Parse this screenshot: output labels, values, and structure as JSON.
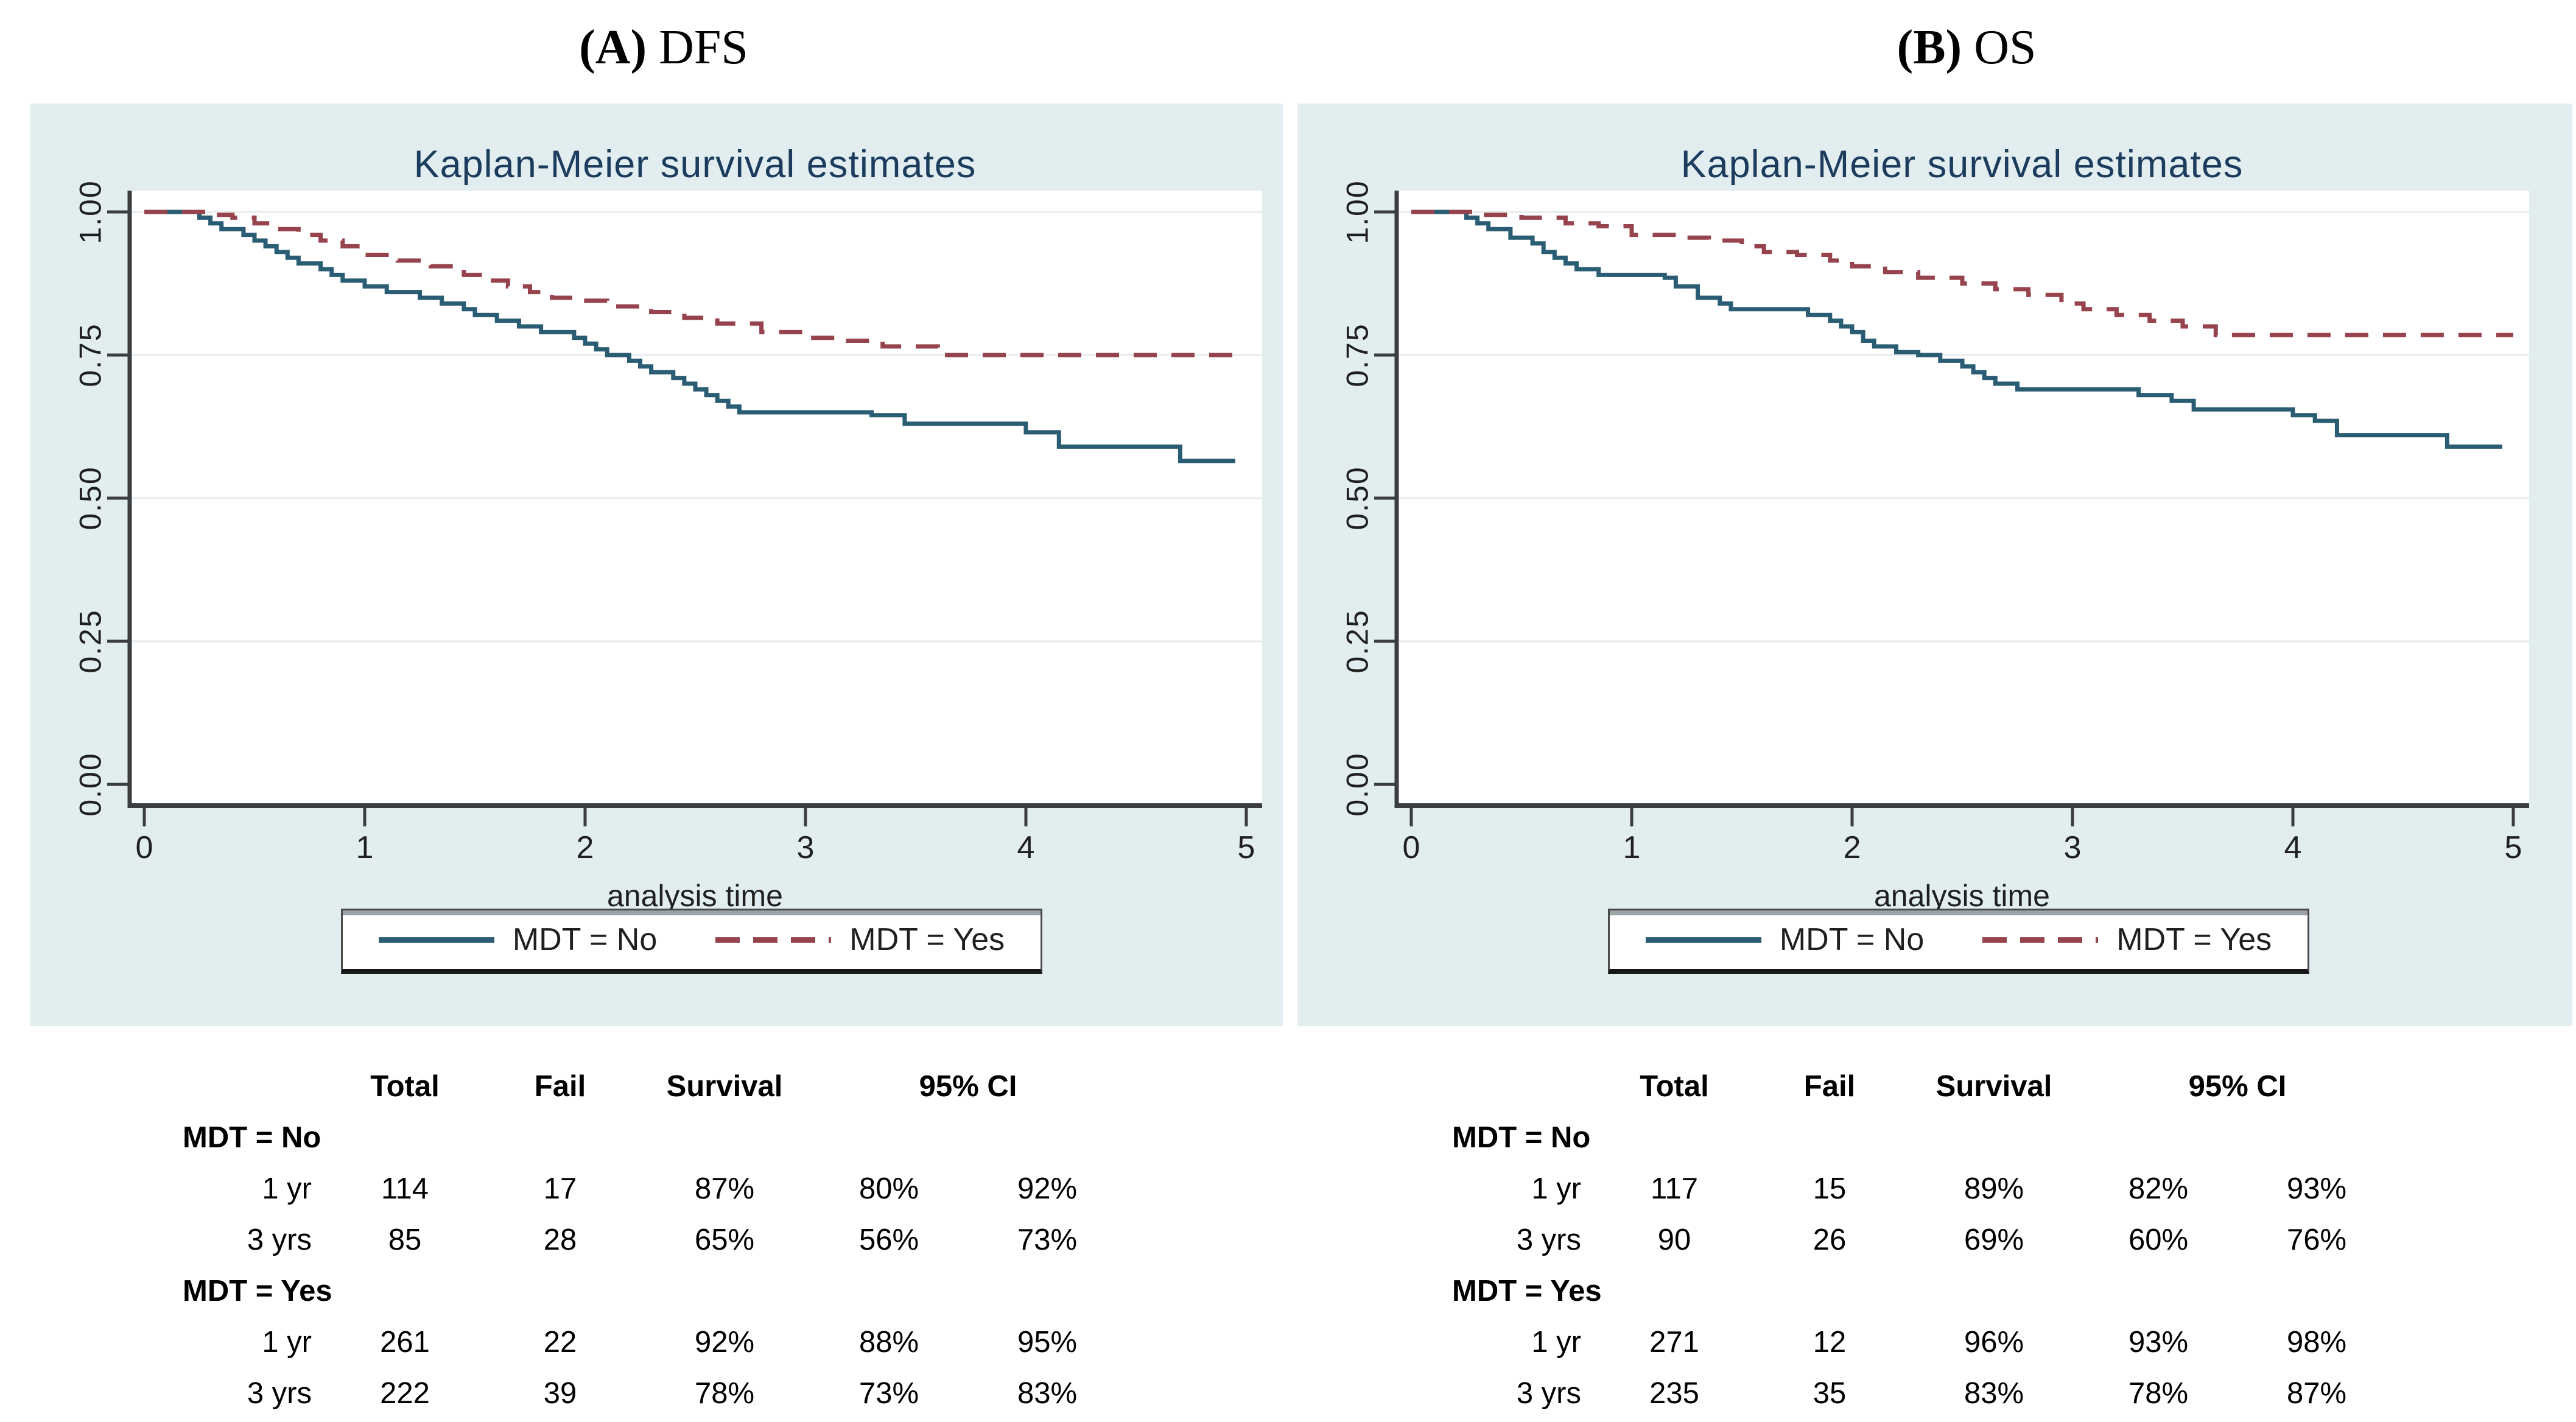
{
  "captions": [
    {
      "prefix": "(A)",
      "label": "DFS"
    },
    {
      "prefix": "(B)",
      "label": "OS"
    }
  ],
  "chart_data": [
    {
      "type": "line",
      "panel": "A",
      "title": "Kaplan-Meier survival estimates",
      "xlabel": "analysis time",
      "xticks": [
        "0",
        "1",
        "2",
        "3",
        "4",
        "5"
      ],
      "yticks": [
        "1.00",
        "0.75",
        "0.50",
        "0.25",
        "0.00"
      ],
      "xlim": [
        0,
        5.1
      ],
      "ylim": [
        0,
        1.04
      ],
      "grid": "horizontal",
      "legend_position": "below",
      "colors": {
        "plot_bg": "#ffffff",
        "panel_bg": "#e2edf0",
        "grid": "#e7ebec",
        "axis": "#3a3e41",
        "title": "#1c3c5e"
      },
      "series": [
        {
          "name": "MDT = No",
          "color": "#2a5d74",
          "dash": "solid",
          "points": [
            [
              0,
              1.0
            ],
            [
              0.25,
              0.99
            ],
            [
              0.3,
              0.98
            ],
            [
              0.35,
              0.97
            ],
            [
              0.45,
              0.96
            ],
            [
              0.5,
              0.95
            ],
            [
              0.55,
              0.94
            ],
            [
              0.6,
              0.93
            ],
            [
              0.65,
              0.92
            ],
            [
              0.7,
              0.91
            ],
            [
              0.8,
              0.9
            ],
            [
              0.85,
              0.89
            ],
            [
              0.9,
              0.88
            ],
            [
              1.0,
              0.87
            ],
            [
              1.1,
              0.86
            ],
            [
              1.25,
              0.85
            ],
            [
              1.35,
              0.84
            ],
            [
              1.45,
              0.83
            ],
            [
              1.5,
              0.82
            ],
            [
              1.6,
              0.81
            ],
            [
              1.7,
              0.8
            ],
            [
              1.8,
              0.79
            ],
            [
              1.95,
              0.78
            ],
            [
              2.0,
              0.77
            ],
            [
              2.05,
              0.76
            ],
            [
              2.1,
              0.75
            ],
            [
              2.2,
              0.74
            ],
            [
              2.25,
              0.73
            ],
            [
              2.3,
              0.72
            ],
            [
              2.4,
              0.71
            ],
            [
              2.45,
              0.7
            ],
            [
              2.5,
              0.69
            ],
            [
              2.55,
              0.68
            ],
            [
              2.6,
              0.67
            ],
            [
              2.65,
              0.66
            ],
            [
              2.7,
              0.65
            ],
            [
              3.3,
              0.645
            ],
            [
              3.45,
              0.63
            ],
            [
              4.0,
              0.615
            ],
            [
              4.15,
              0.59
            ],
            [
              4.7,
              0.565
            ],
            [
              4.95,
              0.565
            ]
          ]
        },
        {
          "name": "MDT = Yes",
          "color": "#96434d",
          "dash": "dashed",
          "points": [
            [
              0,
              1.0
            ],
            [
              0.3,
              0.995
            ],
            [
              0.4,
              0.99
            ],
            [
              0.5,
              0.98
            ],
            [
              0.6,
              0.97
            ],
            [
              0.7,
              0.96
            ],
            [
              0.8,
              0.95
            ],
            [
              0.9,
              0.94
            ],
            [
              1.0,
              0.925
            ],
            [
              1.15,
              0.915
            ],
            [
              1.3,
              0.905
            ],
            [
              1.45,
              0.89
            ],
            [
              1.55,
              0.88
            ],
            [
              1.65,
              0.87
            ],
            [
              1.75,
              0.86
            ],
            [
              1.85,
              0.85
            ],
            [
              1.95,
              0.845
            ],
            [
              2.1,
              0.835
            ],
            [
              2.3,
              0.825
            ],
            [
              2.45,
              0.815
            ],
            [
              2.6,
              0.805
            ],
            [
              2.8,
              0.79
            ],
            [
              3.0,
              0.78
            ],
            [
              3.15,
              0.775
            ],
            [
              3.35,
              0.765
            ],
            [
              3.6,
              0.75
            ],
            [
              5.0,
              0.75
            ]
          ]
        }
      ]
    },
    {
      "type": "line",
      "panel": "B",
      "title": "Kaplan-Meier survival estimates",
      "xlabel": "analysis time",
      "xticks": [
        "0",
        "1",
        "2",
        "3",
        "4",
        "5"
      ],
      "yticks": [
        "1.00",
        "0.75",
        "0.50",
        "0.25",
        "0.00"
      ],
      "xlim": [
        0,
        5.1
      ],
      "ylim": [
        0,
        1.04
      ],
      "grid": "horizontal",
      "legend_position": "below",
      "colors": {
        "plot_bg": "#ffffff",
        "panel_bg": "#e2edf0",
        "grid": "#e7ebec",
        "axis": "#3a3e41",
        "title": "#1c3c5e"
      },
      "series": [
        {
          "name": "MDT = No",
          "color": "#2a5d74",
          "dash": "solid",
          "points": [
            [
              0,
              1.0
            ],
            [
              0.25,
              0.99
            ],
            [
              0.3,
              0.98
            ],
            [
              0.35,
              0.97
            ],
            [
              0.45,
              0.955
            ],
            [
              0.55,
              0.945
            ],
            [
              0.6,
              0.93
            ],
            [
              0.65,
              0.92
            ],
            [
              0.7,
              0.91
            ],
            [
              0.75,
              0.9
            ],
            [
              0.85,
              0.89
            ],
            [
              1.15,
              0.885
            ],
            [
              1.2,
              0.87
            ],
            [
              1.3,
              0.85
            ],
            [
              1.4,
              0.84
            ],
            [
              1.45,
              0.83
            ],
            [
              1.8,
              0.82
            ],
            [
              1.9,
              0.81
            ],
            [
              1.95,
              0.8
            ],
            [
              2.0,
              0.79
            ],
            [
              2.05,
              0.775
            ],
            [
              2.1,
              0.765
            ],
            [
              2.2,
              0.755
            ],
            [
              2.3,
              0.75
            ],
            [
              2.4,
              0.74
            ],
            [
              2.5,
              0.73
            ],
            [
              2.55,
              0.72
            ],
            [
              2.6,
              0.71
            ],
            [
              2.65,
              0.7
            ],
            [
              2.75,
              0.69
            ],
            [
              3.3,
              0.68
            ],
            [
              3.45,
              0.67
            ],
            [
              3.55,
              0.655
            ],
            [
              4.0,
              0.645
            ],
            [
              4.1,
              0.635
            ],
            [
              4.2,
              0.61
            ],
            [
              4.7,
              0.59
            ],
            [
              4.95,
              0.59
            ]
          ]
        },
        {
          "name": "MDT = Yes",
          "color": "#96434d",
          "dash": "dashed",
          "points": [
            [
              0,
              1.0
            ],
            [
              0.3,
              0.995
            ],
            [
              0.5,
              0.99
            ],
            [
              0.7,
              0.98
            ],
            [
              0.85,
              0.975
            ],
            [
              1.0,
              0.96
            ],
            [
              1.2,
              0.955
            ],
            [
              1.35,
              0.95
            ],
            [
              1.5,
              0.94
            ],
            [
              1.6,
              0.93
            ],
            [
              1.75,
              0.925
            ],
            [
              1.9,
              0.915
            ],
            [
              2.0,
              0.905
            ],
            [
              2.15,
              0.895
            ],
            [
              2.3,
              0.885
            ],
            [
              2.5,
              0.875
            ],
            [
              2.65,
              0.865
            ],
            [
              2.8,
              0.855
            ],
            [
              2.95,
              0.84
            ],
            [
              3.05,
              0.83
            ],
            [
              3.2,
              0.82
            ],
            [
              3.35,
              0.81
            ],
            [
              3.5,
              0.8
            ],
            [
              3.65,
              0.785
            ],
            [
              5.0,
              0.785
            ]
          ]
        }
      ]
    }
  ],
  "tables": [
    {
      "headers": {
        "total": "Total",
        "fail": "Fail",
        "survival": "Survival",
        "ci": "95% CI"
      },
      "groups": [
        {
          "label": "MDT = No",
          "rows": [
            {
              "time": "1 yr",
              "total": "114",
              "fail": "17",
              "survival": "87%",
              "ci_low": "80%",
              "ci_high": "92%"
            },
            {
              "time": "3 yrs",
              "total": "85",
              "fail": "28",
              "survival": "65%",
              "ci_low": "56%",
              "ci_high": "73%"
            }
          ]
        },
        {
          "label": "MDT = Yes",
          "rows": [
            {
              "time": "1 yr",
              "total": "261",
              "fail": "22",
              "survival": "92%",
              "ci_low": "88%",
              "ci_high": "95%"
            },
            {
              "time": "3 yrs",
              "total": "222",
              "fail": "39",
              "survival": "78%",
              "ci_low": "73%",
              "ci_high": "83%"
            }
          ]
        }
      ]
    },
    {
      "headers": {
        "total": "Total",
        "fail": "Fail",
        "survival": "Survival",
        "ci": "95% CI"
      },
      "groups": [
        {
          "label": "MDT = No",
          "rows": [
            {
              "time": "1 yr",
              "total": "117",
              "fail": "15",
              "survival": "89%",
              "ci_low": "82%",
              "ci_high": "93%"
            },
            {
              "time": "3 yrs",
              "total": "90",
              "fail": "26",
              "survival": "69%",
              "ci_low": "60%",
              "ci_high": "76%"
            }
          ]
        },
        {
          "label": "MDT = Yes",
          "rows": [
            {
              "time": "1 yr",
              "total": "271",
              "fail": "12",
              "survival": "96%",
              "ci_low": "93%",
              "ci_high": "98%"
            },
            {
              "time": "3 yrs",
              "total": "235",
              "fail": "35",
              "survival": "83%",
              "ci_low": "78%",
              "ci_high": "87%"
            }
          ]
        }
      ]
    }
  ]
}
